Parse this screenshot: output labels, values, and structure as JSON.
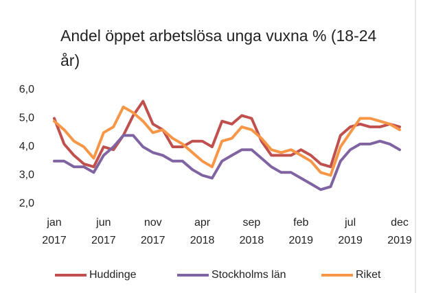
{
  "chart_data": {
    "type": "line",
    "title": "Andel öppet arbetslösa unga vuxna % (18-24 år)",
    "categories": [
      "jan 2017",
      null,
      null,
      null,
      null,
      "jun 2017",
      null,
      null,
      null,
      null,
      "nov 2017",
      null,
      null,
      null,
      null,
      "apr 2018",
      null,
      null,
      null,
      null,
      "sep 2018",
      null,
      null,
      null,
      null,
      "feb 2019",
      null,
      null,
      null,
      null,
      "jul 2019",
      null,
      null,
      null,
      null,
      "dec 2019"
    ],
    "series": [
      {
        "name": "Huddinge",
        "color": "#c0504d",
        "values": [
          5.0,
          4.1,
          3.7,
          3.4,
          3.3,
          4.0,
          3.9,
          4.4,
          5.1,
          5.6,
          4.8,
          4.6,
          4.0,
          4.0,
          4.2,
          4.2,
          4.0,
          4.9,
          4.8,
          5.1,
          5.0,
          4.2,
          3.7,
          3.7,
          3.7,
          3.9,
          3.7,
          3.4,
          3.3,
          4.4,
          4.7,
          4.8,
          4.7,
          4.7,
          4.8,
          4.7
        ]
      },
      {
        "name": "Stockholms län",
        "color": "#8064a2",
        "values": [
          3.5,
          3.5,
          3.3,
          3.3,
          3.1,
          3.7,
          4.0,
          4.4,
          4.4,
          4.0,
          3.8,
          3.7,
          3.5,
          3.5,
          3.2,
          3.0,
          2.9,
          3.5,
          3.7,
          3.9,
          3.9,
          3.6,
          3.3,
          3.1,
          3.1,
          2.9,
          2.7,
          2.5,
          2.6,
          3.5,
          3.9,
          4.1,
          4.1,
          4.2,
          4.1,
          3.9
        ]
      },
      {
        "name": "Riket",
        "color": "#f79646",
        "values": [
          4.9,
          4.6,
          4.2,
          4.0,
          3.6,
          4.5,
          4.7,
          5.4,
          5.2,
          4.9,
          4.5,
          4.6,
          4.3,
          4.1,
          3.8,
          3.5,
          3.3,
          4.2,
          4.3,
          4.7,
          4.6,
          4.3,
          3.9,
          3.8,
          3.9,
          3.7,
          3.5,
          3.1,
          3.0,
          4.0,
          4.5,
          5.0,
          5.0,
          4.9,
          4.8,
          4.6
        ]
      }
    ],
    "ylim": [
      2.0,
      6.0
    ],
    "yticks": [
      {
        "value": 2.0,
        "label": "2,0"
      },
      {
        "value": 3.0,
        "label": "3,0"
      },
      {
        "value": 4.0,
        "label": "4,0"
      },
      {
        "value": 5.0,
        "label": "5,0"
      },
      {
        "value": 6.0,
        "label": "6,0"
      }
    ],
    "grid": false,
    "legend": "bottom"
  }
}
